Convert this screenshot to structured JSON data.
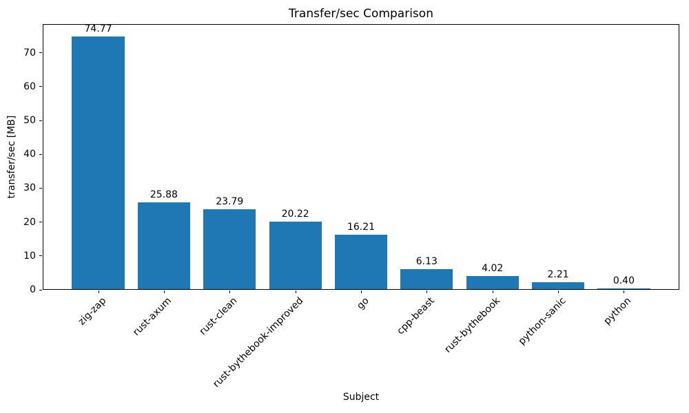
{
  "chart_data": {
    "type": "bar",
    "title": "Transfer/sec Comparison",
    "xlabel": "Subject",
    "ylabel": "transfer/sec [MB]",
    "categories": [
      "zig-zap",
      "rust-axum",
      "rust-clean",
      "rust-bythebook-improved",
      "go",
      "cpp-beast",
      "rust-bythebook",
      "python-sanic",
      "python"
    ],
    "values": [
      74.77,
      25.88,
      23.79,
      20.22,
      16.21,
      6.13,
      4.02,
      2.21,
      0.4
    ],
    "bar_value_labels": [
      "74.77",
      "25.88",
      "23.79",
      "20.22",
      "16.21",
      "6.13",
      "4.02",
      "2.21",
      "0.40"
    ],
    "bar_color": "#1f77b4",
    "text_color": "#000000",
    "ylim": [
      0,
      78.5
    ],
    "yticks": [
      0,
      10,
      20,
      30,
      40,
      50,
      60,
      70
    ],
    "x_tick_rotation_deg": 45,
    "grid": false,
    "legend": "none"
  }
}
